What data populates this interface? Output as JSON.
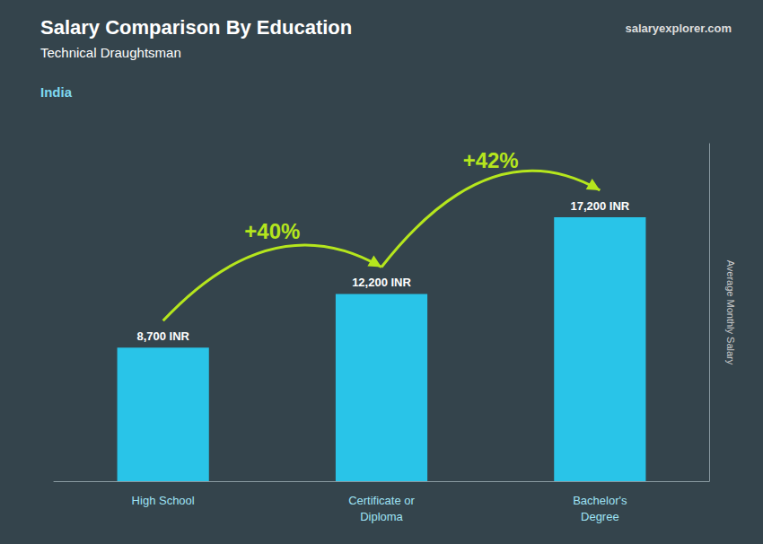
{
  "chart_data": {
    "type": "bar",
    "title": "Salary Comparison By Education",
    "subtitle": "Technical Draughtsman",
    "country": "India",
    "watermark": "salaryexplorer.com",
    "ylabel": "Average Monthly Salary",
    "categories": [
      "High School",
      "Certificate or\nDiploma",
      "Bachelor's\nDegree"
    ],
    "values": [
      8700,
      12200,
      17200
    ],
    "value_labels": [
      "8,700 INR",
      "12,200 INR",
      "17,200 INR"
    ],
    "data_labels": true,
    "annotations": [
      "+40%",
      "+42%"
    ],
    "color": "#29C4E8",
    "ylim": [
      0,
      22000
    ],
    "grid": false,
    "tick_labels": "x"
  }
}
